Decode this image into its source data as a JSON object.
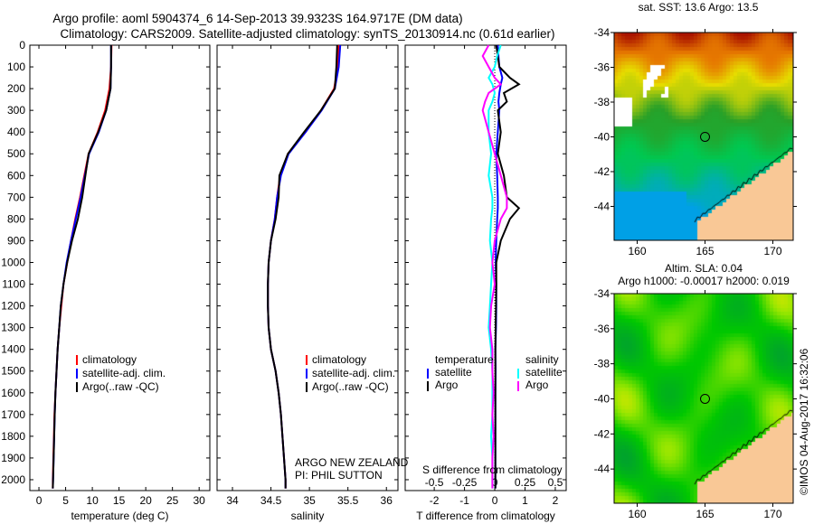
{
  "title": {
    "line1": "Argo profile: aoml 5904374_6 14-Sep-2013 39.9323S 164.9717E (DM data)",
    "line2": "Climatology: CARS2009. Satellite-adjusted climatology: synTS_20130914.nc (0.61d earlier)"
  },
  "colors": {
    "climatology": "#ff0000",
    "satellite": "#0000ff",
    "argo": "#000000",
    "sal_satellite": "#00ffff",
    "sal_argo": "#ff00ff",
    "land": "#f9c896"
  },
  "chart_data": [
    {
      "type": "line",
      "id": "temperature",
      "xlabel": "temperature (deg C)",
      "ylabel": "",
      "xlim": [
        -1.7,
        32
      ],
      "ylim": [
        2050,
        0
      ],
      "xticks": [
        0,
        5,
        10,
        15,
        20,
        25,
        30
      ],
      "yticks": [
        0,
        100,
        200,
        300,
        400,
        500,
        600,
        700,
        800,
        900,
        1000,
        1100,
        1200,
        1300,
        1400,
        1500,
        1600,
        1700,
        1800,
        1900,
        2000
      ],
      "depth": [
        0,
        100,
        200,
        300,
        400,
        500,
        600,
        700,
        800,
        900,
        1000,
        1100,
        1200,
        1300,
        1400,
        1500,
        1600,
        1700,
        1800,
        1900,
        2000,
        2040
      ],
      "series": [
        {
          "name": "climatology",
          "color": "#ff0000",
          "values": [
            13.6,
            13.5,
            13.2,
            12.4,
            11.0,
            9.3,
            8.5,
            7.7,
            6.8,
            6.0,
            5.3,
            4.6,
            4.2,
            3.8,
            3.5,
            3.3,
            3.1,
            2.9,
            2.8,
            2.7,
            2.6,
            2.6
          ]
        },
        {
          "name": "satellite-adj. clim.",
          "color": "#0000ff",
          "values": [
            13.5,
            13.5,
            13.4,
            12.6,
            11.2,
            9.4,
            8.6,
            7.8,
            6.9,
            6.0,
            5.2,
            4.6,
            4.1,
            3.8,
            3.5,
            3.3,
            3.1,
            2.95,
            2.85,
            2.75,
            2.65,
            2.6
          ]
        },
        {
          "name": "Argo(..raw -QC)",
          "color": "#000000",
          "values": [
            13.5,
            13.5,
            13.4,
            12.6,
            11.1,
            9.3,
            8.7,
            8.1,
            7.3,
            6.2,
            5.3,
            4.6,
            4.1,
            3.8,
            3.5,
            3.3,
            3.1,
            2.95,
            2.85,
            2.75,
            2.65,
            2.6
          ]
        }
      ]
    },
    {
      "type": "line",
      "id": "salinity",
      "xlabel": "salinity",
      "xlim": [
        33.8,
        36.15
      ],
      "ylim": [
        2050,
        0
      ],
      "xticks": [
        34,
        34.5,
        35,
        35.5,
        36
      ],
      "depth": [
        0,
        100,
        200,
        300,
        400,
        500,
        600,
        700,
        800,
        900,
        1000,
        1100,
        1200,
        1300,
        1400,
        1500,
        1600,
        1700,
        1800,
        1900,
        2000,
        2040
      ],
      "series": [
        {
          "name": "climatology",
          "color": "#ff0000",
          "values": [
            35.38,
            35.37,
            35.32,
            35.15,
            34.95,
            34.72,
            34.62,
            34.58,
            34.55,
            34.5,
            34.47,
            34.46,
            34.46,
            34.47,
            34.5,
            34.56,
            34.6,
            34.63,
            34.65,
            34.67,
            34.69,
            34.69
          ]
        },
        {
          "name": "satellite-adj. clim.",
          "color": "#0000ff",
          "values": [
            35.4,
            35.38,
            35.33,
            35.16,
            34.95,
            34.73,
            34.63,
            34.58,
            34.55,
            34.5,
            34.47,
            34.46,
            34.46,
            34.47,
            34.5,
            34.56,
            34.6,
            34.63,
            34.65,
            34.67,
            34.69,
            34.69
          ]
        },
        {
          "name": "Argo(..raw -QC)",
          "color": "#000000",
          "values": [
            35.36,
            35.35,
            35.33,
            35.15,
            34.93,
            34.72,
            34.61,
            34.6,
            34.56,
            34.5,
            34.47,
            34.46,
            34.46,
            34.47,
            34.5,
            34.56,
            34.6,
            34.63,
            34.65,
            34.67,
            34.69,
            34.69
          ]
        }
      ]
    },
    {
      "type": "line",
      "id": "difference",
      "xlabel": "T difference from climatology",
      "x2label": "S difference from climatology",
      "xlim": [
        -2.96,
        2.36
      ],
      "ylim": [
        2050,
        0
      ],
      "xticks": [
        -2,
        -1,
        0,
        1,
        2
      ],
      "x2ticks": [
        "-0.5",
        "-0.25",
        "0",
        "0.25",
        "0.5"
      ],
      "depth": [
        0,
        50,
        100,
        150,
        180,
        220,
        260,
        300,
        400,
        500,
        600,
        700,
        750,
        800,
        900,
        1000,
        1100,
        1200,
        1300,
        1400,
        1500,
        1600,
        1700,
        1800,
        1900,
        2000,
        2040
      ],
      "series": [
        {
          "name": "temperature satellite",
          "color": "#0000ff",
          "values": [
            0.1,
            0.12,
            0.15,
            0.25,
            0.2,
            0.15,
            0.12,
            0.15,
            0.1,
            0.05,
            0.08,
            0.1,
            0.1,
            0.08,
            0.05,
            0.03,
            0.05,
            0.05,
            0.04,
            0.02,
            0.03,
            0.02,
            0.02,
            0.02,
            0.02,
            0.02,
            0.02
          ]
        },
        {
          "name": "temperature Argo",
          "color": "#000000",
          "values": [
            0.05,
            0.1,
            0.15,
            0.5,
            0.8,
            0.3,
            0.4,
            0.1,
            0.2,
            0.1,
            0.3,
            0.4,
            0.8,
            0.5,
            0.2,
            0.05,
            0.05,
            0.04,
            0.03,
            0.02,
            0.02,
            0.02,
            0.02,
            0.02,
            0.02,
            0.02,
            0.02
          ]
        },
        {
          "name": "salinity satellite",
          "color": "#00ffff",
          "values": [
            0.05,
            0.02,
            0.0,
            -0.05,
            -0.02,
            0.0,
            -0.02,
            -0.05,
            -0.05,
            -0.03,
            -0.05,
            -0.02,
            -0.02,
            -0.03,
            -0.04,
            -0.02,
            -0.03,
            -0.04,
            -0.05,
            -0.03,
            -0.02,
            -0.02,
            -0.02,
            -0.03,
            -0.02,
            -0.02,
            -0.02
          ]
        },
        {
          "name": "salinity Argo",
          "color": "#ff00ff",
          "values": [
            -0.05,
            -0.1,
            -0.05,
            0.0,
            0.05,
            -0.05,
            -0.08,
            -0.1,
            -0.05,
            0.0,
            0.05,
            0.1,
            0.1,
            0.05,
            0.0,
            -0.02,
            0.0,
            -0.03,
            -0.04,
            -0.02,
            -0.02,
            -0.01,
            -0.02,
            -0.01,
            -0.02,
            -0.02,
            -0.02
          ]
        }
      ]
    }
  ],
  "legends": {
    "profile": [
      "climatology",
      "satellite-adj. clim.",
      "Argo(..raw -QC)"
    ],
    "diff_temperature_header": "temperature",
    "diff_salinity_header": "salinity",
    "diff_items": [
      "satellite",
      "Argo",
      "satellite",
      "Argo"
    ]
  },
  "annotation": {
    "line1": "ARGO NEW ZEALAND",
    "line2": "PI: PHIL SUTTON"
  },
  "maps": {
    "sst": {
      "title": "sat. SST: 13.6 Argo: 13.5",
      "lon_ticks": [
        "160",
        "165",
        "170"
      ],
      "lat_ticks": [
        "-34",
        "-36",
        "-38",
        "-40",
        "-42",
        "-44"
      ],
      "float_lon": 165,
      "float_lat": -40
    },
    "sla": {
      "title1": "Altim. SLA: 0.04",
      "title2": "Argo h1000: -0.00017 h2000: 0.019",
      "lon_ticks": [
        "160",
        "165",
        "170"
      ],
      "lat_ticks": [
        "-34",
        "-36",
        "-38",
        "-40",
        "-42",
        "-44"
      ],
      "float_lon": 165,
      "float_lat": -40
    }
  },
  "footer": "©IMOS 04-Aug-2017 16:32:06"
}
